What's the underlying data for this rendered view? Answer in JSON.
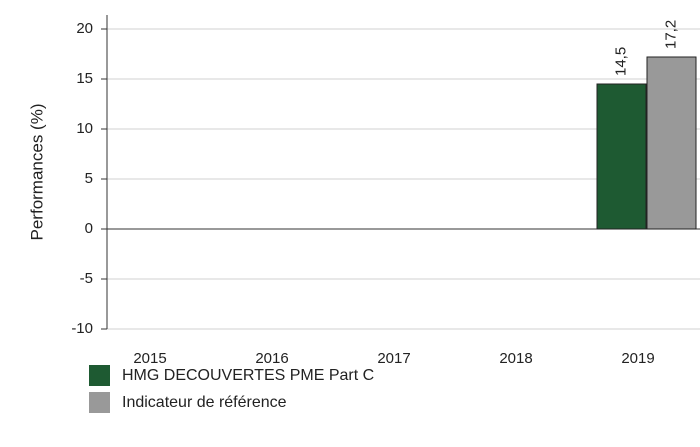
{
  "chart_data": {
    "type": "bar",
    "y_label": "Performances (%)",
    "categories": [
      "2015",
      "2016",
      "2017",
      "2018",
      "2019"
    ],
    "series": [
      {
        "name": "HMG DECOUVERTES PME Part C",
        "color": "#1e5a32",
        "values": [
          null,
          null,
          null,
          null,
          14.5
        ],
        "value_labels": [
          null,
          null,
          null,
          null,
          "14,5"
        ]
      },
      {
        "name": "Indicateur de référence",
        "color": "#999999",
        "values": [
          null,
          null,
          null,
          null,
          17.2
        ],
        "value_labels": [
          null,
          null,
          null,
          null,
          "17,2"
        ]
      }
    ],
    "ylim": [
      -10,
      21.4
    ],
    "yticks": [
      -10,
      -5,
      0,
      5,
      10,
      15,
      20
    ],
    "grid": true,
    "legend": "bottom"
  }
}
